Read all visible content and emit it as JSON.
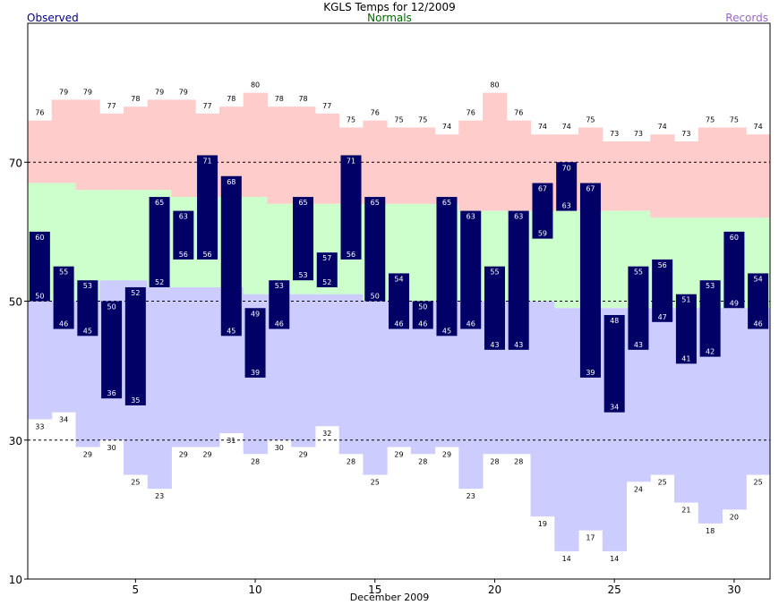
{
  "chart_data": {
    "type": "bar",
    "title": "KGLS Temps for 12/2009",
    "xlabel": "December 2009",
    "ylabel": "",
    "ylim": [
      10,
      90
    ],
    "xlim": [
      1,
      32
    ],
    "yticks": [
      10,
      30,
      50,
      70
    ],
    "xticks": [
      5,
      10,
      15,
      20,
      25,
      30
    ],
    "reference_lines": [
      30,
      50,
      70
    ],
    "legend": {
      "placement": "top",
      "observed": "Observed",
      "normals": "Normals",
      "records": "Records"
    },
    "colors": {
      "observed": "#000066",
      "observed_label": "#000080",
      "normals": "#006600",
      "records": "#9966cc",
      "record_high_fill": "#ffcccc",
      "normal_fill": "#ccffcc",
      "record_low_fill": "#ccccff",
      "observed_text": "#ffffff"
    },
    "days": [
      1,
      2,
      3,
      4,
      5,
      6,
      7,
      8,
      9,
      10,
      11,
      12,
      13,
      14,
      15,
      16,
      17,
      18,
      19,
      20,
      21,
      22,
      23,
      24,
      25,
      26,
      27,
      28,
      29,
      30,
      31
    ],
    "observed_high": [
      60,
      55,
      53,
      50,
      52,
      65,
      63,
      71,
      68,
      49,
      53,
      65,
      57,
      71,
      65,
      54,
      50,
      65,
      63,
      55,
      63,
      67,
      70,
      67,
      48,
      55,
      56,
      51,
      53,
      60,
      54
    ],
    "observed_low": [
      50,
      46,
      45,
      36,
      35,
      52,
      56,
      56,
      45,
      39,
      46,
      53,
      52,
      56,
      50,
      46,
      46,
      45,
      46,
      43,
      43,
      59,
      63,
      39,
      34,
      43,
      47,
      41,
      42,
      49,
      46
    ],
    "record_high": [
      76,
      79,
      79,
      77,
      78,
      79,
      79,
      77,
      78,
      80,
      78,
      78,
      77,
      75,
      76,
      75,
      75,
      74,
      76,
      80,
      76,
      74,
      74,
      75,
      73,
      73,
      74,
      73,
      75,
      75,
      74
    ],
    "record_low": [
      33,
      34,
      29,
      30,
      25,
      23,
      29,
      29,
      31,
      28,
      30,
      29,
      32,
      28,
      25,
      29,
      28,
      29,
      23,
      28,
      28,
      19,
      14,
      17,
      14,
      24,
      25,
      21,
      18,
      20,
      25
    ],
    "normal_high": [
      67,
      67,
      66,
      66,
      66,
      66,
      65,
      65,
      65,
      65,
      64,
      64,
      64,
      64,
      64,
      64,
      64,
      64,
      63,
      63,
      63,
      63,
      63,
      63,
      63,
      63,
      62,
      62,
      62,
      62,
      62
    ],
    "normal_low": [
      50,
      50,
      50,
      53,
      53,
      52,
      52,
      52,
      52,
      51,
      51,
      51,
      51,
      51,
      50,
      50,
      50,
      50,
      50,
      50,
      50,
      50,
      49,
      49,
      49,
      49,
      49,
      49,
      49,
      49,
      49
    ]
  }
}
